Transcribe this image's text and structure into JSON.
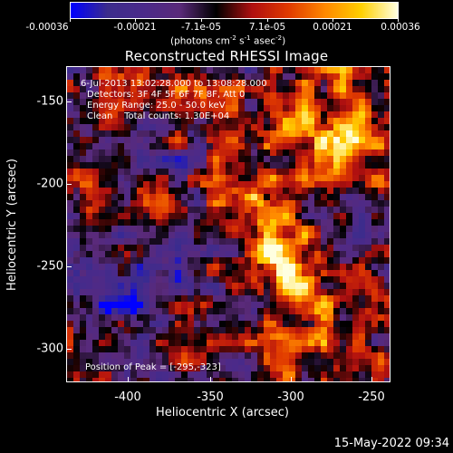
{
  "colorbar": {
    "labels": [
      "-0.00036",
      "-0.00021",
      "-7.1e-05",
      "7.1e-05",
      "0.00021",
      "0.00036"
    ],
    "units_prefix": "(photons cm",
    "units_exp1": "-2",
    "units_mid": " s",
    "units_exp2": "-1",
    "units_mid2": " asec",
    "units_exp3": "-2",
    "units_suffix": ")"
  },
  "title": "Reconstructed RHESSI Image",
  "info": {
    "time_range": "6-Jul-2013 13:02:28.000 to 13:08:28.000",
    "detectors": "Detectors: 3F 4F 5F 6F 7F 8F, Att 0",
    "energy": "Energy Range: 25.0 - 50.0 keV",
    "clean": "Clean    Total counts: 1.30E+04"
  },
  "peak": "Position of Peak = [-295,-323]",
  "axes": {
    "xlabel": "Heliocentric X (arcsec)",
    "ylabel": "Heliocentric Y (arcsec)",
    "xticks": [
      "-400",
      "-350",
      "-300",
      "-250"
    ],
    "yticks": [
      "-150",
      "-200",
      "-250",
      "-300"
    ]
  },
  "timestamp": "15-May-2022 09:34",
  "chart_data": {
    "type": "heatmap",
    "title": "Reconstructed RHESSI Image",
    "xlabel": "Heliocentric X (arcsec)",
    "ylabel": "Heliocentric Y (arcsec)",
    "xlim": [
      -432,
      -246
    ],
    "ylim": [
      -322,
      -136
    ],
    "xticks": [
      -400,
      -350,
      -300,
      -250
    ],
    "yticks": [
      -150,
      -200,
      -250,
      -300
    ],
    "colorbar_range": [
      -0.00036,
      0.00036
    ],
    "colorbar_ticks": [
      -0.00036,
      -0.00021,
      -7.1e-05,
      7.1e-05,
      0.00021,
      0.00036
    ],
    "colormap": [
      "#0000ff",
      "#3c2c8c",
      "#4b2a8a",
      "#5a2a7a",
      "#000000",
      "#b01010",
      "#e03a00",
      "#ff8800",
      "#ffd000",
      "#ffffe0"
    ],
    "peak_position": [
      -295,
      -323
    ]
  }
}
